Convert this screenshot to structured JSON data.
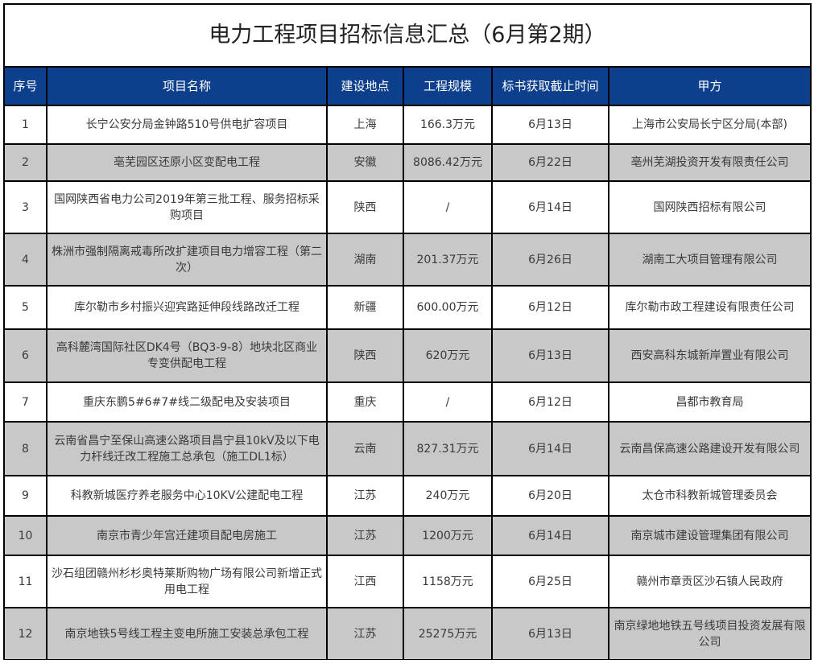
{
  "title": "电力工程项目招标信息汇总（6月第2期）",
  "colors": {
    "header_bg": "#0d3f8c",
    "alt_row": "#c8c8c8"
  },
  "headers": [
    "序号",
    "项目名称",
    "建设地点",
    "工程规模",
    "标书获取截止时间",
    "甲方"
  ],
  "rows": [
    [
      "1",
      "长宁公安分局金钟路510号供电扩容项目",
      "上海",
      "166.3万元",
      "6月13日",
      "上海市公安局长宁区分局(本部)"
    ],
    [
      "2",
      "亳芜园区还原小区变配电工程",
      "安徽",
      "8086.42万元",
      "6月22日",
      "亳州芜湖投资开发有限责任公司"
    ],
    [
      "3",
      "国网陕西省电力公司2019年第三批工程、服务招标采购项目",
      "陕西",
      "/",
      "6月14日",
      "国网陕西招标有限公司"
    ],
    [
      "4",
      "株洲市强制隔离戒毒所改扩建项目电力增容工程（第二次）",
      "湖南",
      "201.37万元",
      "6月26日",
      "湖南工大项目管理有限公司"
    ],
    [
      "5",
      "库尔勒市乡村振兴迎宾路延伸段线路改迁工程",
      "新疆",
      "600.00万元",
      "6月12日",
      "库尔勒市政工程建设有限责任公司"
    ],
    [
      "6",
      "高科麓湾国际社区DK4号（BQ3-9-8）地块北区商业专变供配电工程",
      "陕西",
      "620万元",
      "6月13日",
      "西安高科东城新岸置业有限公司"
    ],
    [
      "7",
      "重庆东鹏5#6#7#线二级配电及安装项目",
      "重庆",
      "/",
      "6月12日",
      "昌都市教育局"
    ],
    [
      "8",
      "云南省昌宁至保山高速公路项目昌宁县10kV及以下电力杆线迁改工程施工总承包（施工DL1标）",
      "云南",
      "827.31万元",
      "6月14日",
      "云南昌保高速公路建设开发有限公司"
    ],
    [
      "9",
      "科教新城医疗养老服务中心10KV公建配电工程",
      "江苏",
      "240万元",
      "6月20日",
      "太仓市科教新城管理委员会"
    ],
    [
      "10",
      "南京市青少年宫迁建项目配电房施工",
      "江苏",
      "1200万元",
      "6月14日",
      "南京城市建设管理集团有限公司"
    ],
    [
      "11",
      "沙石组团赣州杉杉奥特莱斯购物广场有限公司新增正式用电工程",
      "江西",
      "1158万元",
      "6月25日",
      "赣州市章贡区沙石镇人民政府"
    ],
    [
      "12",
      "南京地铁5号线工程主变电所施工安装总承包工程",
      "江苏",
      "25275万元",
      "6月13日",
      "南京绿地地铁五号线项目投资发展有限公司"
    ]
  ]
}
